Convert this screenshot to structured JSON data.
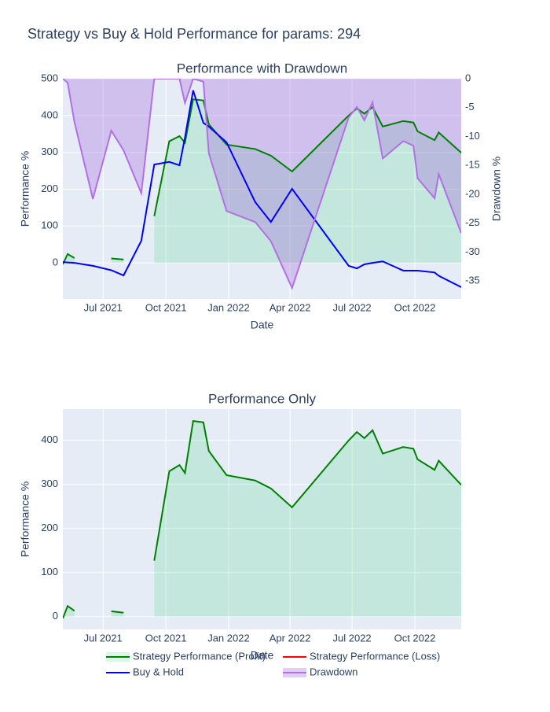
{
  "title": "Strategy vs Buy & Hold Performance for params: 294",
  "chart_data": [
    {
      "type": "line",
      "title": "Performance with Drawdown",
      "xlabel": "Date",
      "ylabel": "Performance %",
      "y2label": "Drawdown %",
      "x": [
        "2021-05-03",
        "2021-05-10",
        "2021-05-20",
        "2021-06-16",
        "2021-07-13",
        "2021-07-31",
        "2021-08-26",
        "2021-09-14",
        "2021-10-06",
        "2021-10-21",
        "2021-10-29",
        "2021-11-10",
        "2021-11-25",
        "2021-12-03",
        "2021-12-29",
        "2022-02-09",
        "2022-03-04",
        "2022-04-04",
        "2022-06-26",
        "2022-07-08",
        "2022-07-19",
        "2022-07-31",
        "2022-08-15",
        "2022-09-14",
        "2022-09-29",
        "2022-10-05",
        "2022-10-30",
        "2022-11-05",
        "2022-12-08"
      ],
      "xlim": [
        "2021-05-03",
        "2022-12-08"
      ],
      "xticks": [
        {
          "value": "2021-07-01",
          "label": "Jul 2021"
        },
        {
          "value": "2021-10-01",
          "label": "Oct 2021"
        },
        {
          "value": "2022-01-01",
          "label": "Jan 2022"
        },
        {
          "value": "2022-04-01",
          "label": "Apr 2022"
        },
        {
          "value": "2022-07-01",
          "label": "Jul 2022"
        },
        {
          "value": "2022-10-01",
          "label": "Oct 2022"
        }
      ],
      "ylim": [
        -98,
        500
      ],
      "yticks": [
        0,
        100,
        200,
        300,
        400,
        500
      ],
      "y2lim": [
        -38.1,
        0
      ],
      "y2ticks": [
        0,
        -5,
        -10,
        -15,
        -20,
        -25,
        -30,
        -35
      ],
      "grid": true,
      "legend": "bottom",
      "series": [
        {
          "name": "Strategy Performance (Profit)",
          "color": "#008000",
          "fill": "rgba(0,200,80,0.15)",
          "values": [
            -4,
            24,
            13,
            null,
            12,
            9,
            null,
            127,
            330,
            344,
            326,
            444,
            441,
            376,
            321,
            309,
            291,
            248,
            400,
            419,
            405,
            423,
            370,
            385,
            381,
            357,
            333,
            354,
            299
          ]
        },
        {
          "name": "Strategy Performance (Loss)",
          "color": "#ff0000",
          "values": [
            null,
            null,
            null,
            null,
            null,
            null,
            null,
            null,
            null,
            null,
            null,
            null,
            null,
            null,
            null,
            null,
            null,
            null,
            null,
            null,
            null,
            null,
            null,
            null,
            null,
            null,
            null,
            null,
            null
          ]
        },
        {
          "name": "Buy & Hold",
          "color": "#0000ff",
          "values": [
            2,
            1,
            0,
            -8,
            -20,
            -34,
            60,
            267,
            274,
            265,
            340,
            468,
            380,
            370,
            327,
            165,
            111,
            201,
            -8,
            -15,
            -4,
            0,
            4,
            -21,
            -21,
            -21,
            -26,
            -35,
            -66
          ]
        },
        {
          "name": "Drawdown",
          "color": "#b46ee6",
          "fill": "rgba(160,90,220,0.3)",
          "axis": "y2",
          "values": [
            0,
            -0.7,
            -7.5,
            -20.8,
            -9,
            -12.4,
            -19.8,
            0,
            0,
            0,
            -4.2,
            0,
            -0.5,
            -12.9,
            -22.9,
            -24.8,
            -28.1,
            -36.2,
            -6.7,
            -4.9,
            -7.2,
            -4.1,
            -13.8,
            -10.8,
            -11.6,
            -17.2,
            -20.7,
            -16.5,
            -26.7
          ]
        }
      ]
    },
    {
      "type": "line",
      "title": "Performance Only",
      "xlabel": "Date",
      "ylabel": "Performance %",
      "x": [
        "2021-05-03",
        "2021-05-10",
        "2021-05-20",
        "2021-06-16",
        "2021-07-13",
        "2021-07-31",
        "2021-08-26",
        "2021-09-14",
        "2021-10-06",
        "2021-10-21",
        "2021-10-29",
        "2021-11-10",
        "2021-11-25",
        "2021-12-03",
        "2021-12-29",
        "2022-02-09",
        "2022-03-04",
        "2022-04-04",
        "2022-06-26",
        "2022-07-08",
        "2022-07-19",
        "2022-07-31",
        "2022-08-15",
        "2022-09-14",
        "2022-09-29",
        "2022-10-05",
        "2022-10-30",
        "2022-11-05",
        "2022-12-08"
      ],
      "xlim": [
        "2021-05-03",
        "2022-12-08"
      ],
      "xticks": [
        {
          "value": "2021-07-01",
          "label": "Jul 2021"
        },
        {
          "value": "2021-10-01",
          "label": "Oct 2021"
        },
        {
          "value": "2022-01-01",
          "label": "Jan 2022"
        },
        {
          "value": "2022-04-01",
          "label": "Apr 2022"
        },
        {
          "value": "2022-07-01",
          "label": "Jul 2022"
        },
        {
          "value": "2022-10-01",
          "label": "Oct 2022"
        }
      ],
      "ylim": [
        -29,
        471
      ],
      "yticks": [
        0,
        100,
        200,
        300,
        400
      ],
      "grid": true,
      "series": [
        {
          "color": "#008000",
          "fill": "rgba(0,200,80,0.15)",
          "values": [
            -4,
            24,
            13,
            null,
            12,
            9,
            null,
            127,
            330,
            344,
            326,
            444,
            441,
            376,
            321,
            309,
            291,
            248,
            400,
            419,
            405,
            423,
            370,
            385,
            381,
            357,
            333,
            354,
            299
          ]
        }
      ]
    }
  ]
}
